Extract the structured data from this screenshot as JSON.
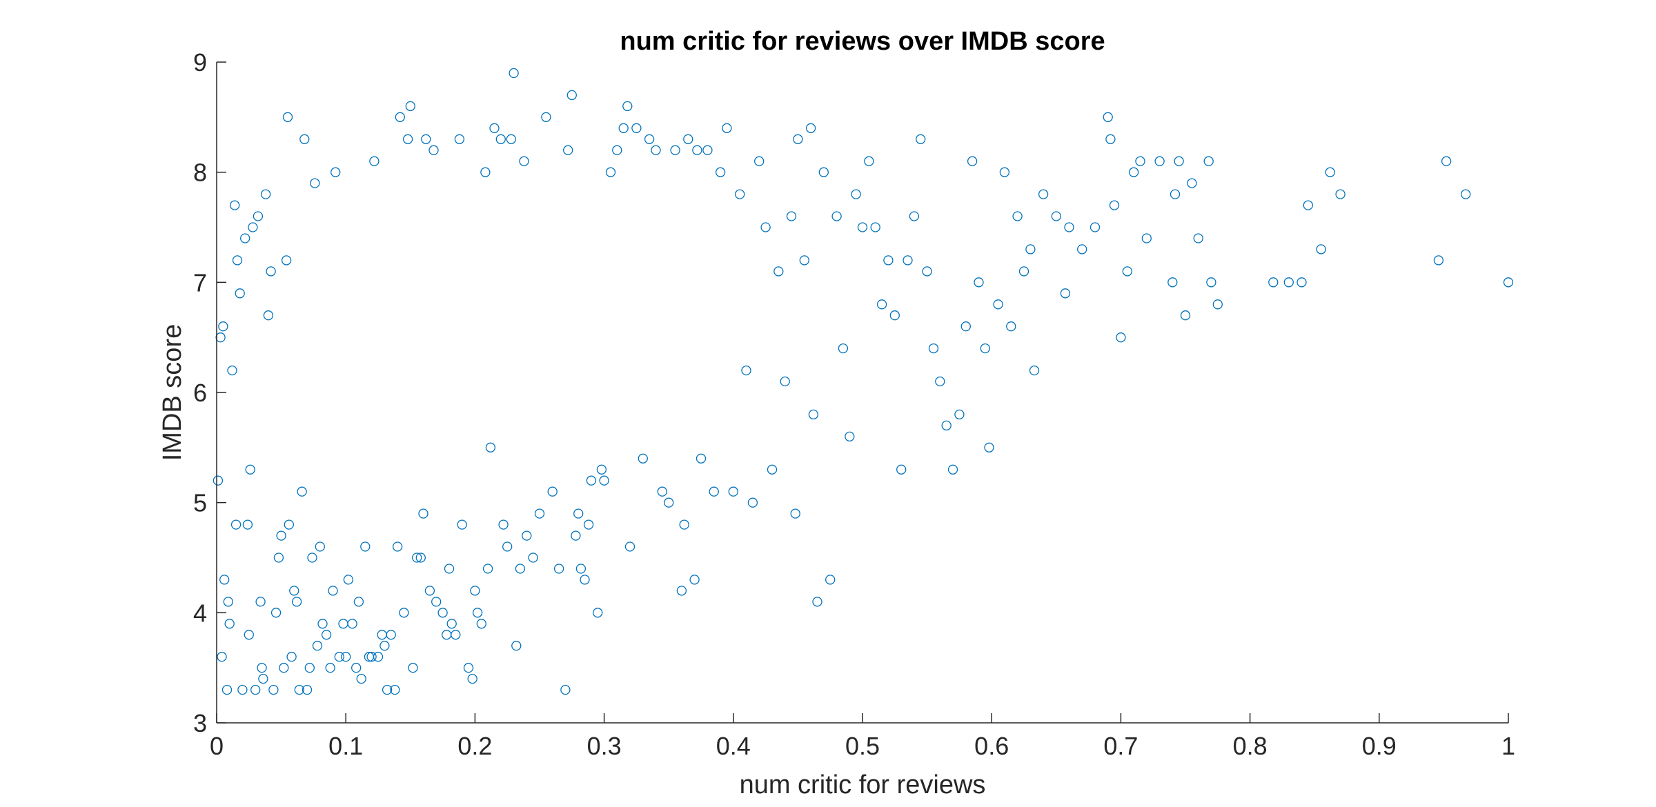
{
  "chart_data": {
    "type": "scatter",
    "title": "num critic for reviews over IMDB score",
    "xlabel": "num critic for reviews",
    "ylabel": "IMDB score",
    "xlim": [
      0,
      1
    ],
    "ylim": [
      3,
      9
    ],
    "xticks": [
      "0",
      "0.1",
      "0.2",
      "0.3",
      "0.4",
      "0.5",
      "0.6",
      "0.7",
      "0.8",
      "0.9",
      "1"
    ],
    "yticks": [
      "3",
      "4",
      "5",
      "6",
      "7",
      "8",
      "9"
    ],
    "grid": false,
    "marker": "open-circle",
    "color": "#0072BD",
    "series": [
      {
        "points": [
          [
            0.001,
            5.2
          ],
          [
            0.003,
            6.5
          ],
          [
            0.004,
            3.6
          ],
          [
            0.005,
            6.6
          ],
          [
            0.006,
            4.3
          ],
          [
            0.008,
            3.3
          ],
          [
            0.009,
            4.1
          ],
          [
            0.01,
            3.9
          ],
          [
            0.012,
            6.2
          ],
          [
            0.014,
            7.7
          ],
          [
            0.015,
            4.8
          ],
          [
            0.016,
            7.2
          ],
          [
            0.018,
            6.9
          ],
          [
            0.02,
            3.3
          ],
          [
            0.022,
            7.4
          ],
          [
            0.024,
            4.8
          ],
          [
            0.025,
            3.8
          ],
          [
            0.026,
            5.3
          ],
          [
            0.028,
            7.5
          ],
          [
            0.03,
            3.3
          ],
          [
            0.032,
            7.6
          ],
          [
            0.034,
            4.1
          ],
          [
            0.035,
            3.5
          ],
          [
            0.036,
            3.4
          ],
          [
            0.038,
            7.8
          ],
          [
            0.04,
            6.7
          ],
          [
            0.042,
            7.1
          ],
          [
            0.044,
            3.3
          ],
          [
            0.046,
            4.0
          ],
          [
            0.048,
            4.5
          ],
          [
            0.05,
            4.7
          ],
          [
            0.052,
            3.5
          ],
          [
            0.054,
            7.2
          ],
          [
            0.055,
            8.5
          ],
          [
            0.056,
            4.8
          ],
          [
            0.058,
            3.6
          ],
          [
            0.06,
            4.2
          ],
          [
            0.062,
            4.1
          ],
          [
            0.064,
            3.3
          ],
          [
            0.066,
            5.1
          ],
          [
            0.068,
            8.3
          ],
          [
            0.07,
            3.3
          ],
          [
            0.072,
            3.5
          ],
          [
            0.074,
            4.5
          ],
          [
            0.076,
            7.9
          ],
          [
            0.078,
            3.7
          ],
          [
            0.08,
            4.6
          ],
          [
            0.082,
            3.9
          ],
          [
            0.085,
            3.8
          ],
          [
            0.088,
            3.5
          ],
          [
            0.09,
            4.2
          ],
          [
            0.092,
            8.0
          ],
          [
            0.095,
            3.6
          ],
          [
            0.098,
            3.9
          ],
          [
            0.1,
            3.6
          ],
          [
            0.102,
            4.3
          ],
          [
            0.105,
            3.9
          ],
          [
            0.108,
            3.5
          ],
          [
            0.11,
            4.1
          ],
          [
            0.112,
            3.4
          ],
          [
            0.115,
            4.6
          ],
          [
            0.118,
            3.6
          ],
          [
            0.12,
            3.6
          ],
          [
            0.122,
            8.1
          ],
          [
            0.125,
            3.6
          ],
          [
            0.128,
            3.8
          ],
          [
            0.13,
            3.7
          ],
          [
            0.132,
            3.3
          ],
          [
            0.135,
            3.8
          ],
          [
            0.138,
            3.3
          ],
          [
            0.14,
            4.6
          ],
          [
            0.142,
            8.5
          ],
          [
            0.145,
            4.0
          ],
          [
            0.148,
            8.3
          ],
          [
            0.15,
            8.6
          ],
          [
            0.152,
            3.5
          ],
          [
            0.155,
            4.5
          ],
          [
            0.158,
            4.5
          ],
          [
            0.16,
            4.9
          ],
          [
            0.162,
            8.3
          ],
          [
            0.165,
            4.2
          ],
          [
            0.168,
            8.2
          ],
          [
            0.17,
            4.1
          ],
          [
            0.175,
            4.0
          ],
          [
            0.178,
            3.8
          ],
          [
            0.18,
            4.4
          ],
          [
            0.182,
            3.9
          ],
          [
            0.185,
            3.8
          ],
          [
            0.188,
            8.3
          ],
          [
            0.19,
            4.8
          ],
          [
            0.195,
            3.5
          ],
          [
            0.198,
            3.4
          ],
          [
            0.2,
            4.2
          ],
          [
            0.202,
            4.0
          ],
          [
            0.205,
            3.9
          ],
          [
            0.208,
            8.0
          ],
          [
            0.21,
            4.4
          ],
          [
            0.212,
            5.5
          ],
          [
            0.215,
            8.4
          ],
          [
            0.22,
            8.3
          ],
          [
            0.222,
            4.8
          ],
          [
            0.225,
            4.6
          ],
          [
            0.228,
            8.3
          ],
          [
            0.23,
            8.9
          ],
          [
            0.232,
            3.7
          ],
          [
            0.235,
            4.4
          ],
          [
            0.238,
            8.1
          ],
          [
            0.24,
            4.7
          ],
          [
            0.245,
            4.5
          ],
          [
            0.25,
            4.9
          ],
          [
            0.255,
            8.5
          ],
          [
            0.26,
            5.1
          ],
          [
            0.265,
            4.4
          ],
          [
            0.27,
            3.3
          ],
          [
            0.272,
            8.2
          ],
          [
            0.275,
            8.7
          ],
          [
            0.278,
            4.7
          ],
          [
            0.28,
            4.9
          ],
          [
            0.282,
            4.4
          ],
          [
            0.285,
            4.3
          ],
          [
            0.288,
            4.8
          ],
          [
            0.29,
            5.2
          ],
          [
            0.295,
            4.0
          ],
          [
            0.298,
            5.3
          ],
          [
            0.3,
            5.2
          ],
          [
            0.305,
            8.0
          ],
          [
            0.31,
            8.2
          ],
          [
            0.315,
            8.4
          ],
          [
            0.318,
            8.6
          ],
          [
            0.32,
            4.6
          ],
          [
            0.325,
            8.4
          ],
          [
            0.33,
            5.4
          ],
          [
            0.335,
            8.3
          ],
          [
            0.34,
            8.2
          ],
          [
            0.345,
            5.1
          ],
          [
            0.35,
            5.0
          ],
          [
            0.355,
            8.2
          ],
          [
            0.36,
            4.2
          ],
          [
            0.362,
            4.8
          ],
          [
            0.365,
            8.3
          ],
          [
            0.37,
            4.3
          ],
          [
            0.372,
            8.2
          ],
          [
            0.375,
            5.4
          ],
          [
            0.38,
            8.2
          ],
          [
            0.385,
            5.1
          ],
          [
            0.39,
            8.0
          ],
          [
            0.395,
            8.4
          ],
          [
            0.4,
            5.1
          ],
          [
            0.405,
            7.8
          ],
          [
            0.41,
            6.2
          ],
          [
            0.415,
            5.0
          ],
          [
            0.42,
            8.1
          ],
          [
            0.425,
            7.5
          ],
          [
            0.43,
            5.3
          ],
          [
            0.435,
            7.1
          ],
          [
            0.44,
            6.1
          ],
          [
            0.445,
            7.6
          ],
          [
            0.448,
            4.9
          ],
          [
            0.45,
            8.3
          ],
          [
            0.455,
            7.2
          ],
          [
            0.46,
            8.4
          ],
          [
            0.462,
            5.8
          ],
          [
            0.465,
            4.1
          ],
          [
            0.47,
            8.0
          ],
          [
            0.475,
            4.3
          ],
          [
            0.48,
            7.6
          ],
          [
            0.485,
            6.4
          ],
          [
            0.49,
            5.6
          ],
          [
            0.495,
            7.8
          ],
          [
            0.5,
            7.5
          ],
          [
            0.505,
            8.1
          ],
          [
            0.51,
            7.5
          ],
          [
            0.515,
            6.8
          ],
          [
            0.52,
            7.2
          ],
          [
            0.525,
            6.7
          ],
          [
            0.53,
            5.3
          ],
          [
            0.535,
            7.2
          ],
          [
            0.54,
            7.6
          ],
          [
            0.545,
            8.3
          ],
          [
            0.55,
            7.1
          ],
          [
            0.555,
            6.4
          ],
          [
            0.56,
            6.1
          ],
          [
            0.565,
            5.7
          ],
          [
            0.57,
            5.3
          ],
          [
            0.575,
            5.8
          ],
          [
            0.58,
            6.6
          ],
          [
            0.585,
            8.1
          ],
          [
            0.59,
            7.0
          ],
          [
            0.595,
            6.4
          ],
          [
            0.598,
            5.5
          ],
          [
            0.605,
            6.8
          ],
          [
            0.61,
            8.0
          ],
          [
            0.615,
            6.6
          ],
          [
            0.62,
            7.6
          ],
          [
            0.625,
            7.1
          ],
          [
            0.63,
            7.3
          ],
          [
            0.633,
            6.2
          ],
          [
            0.64,
            7.8
          ],
          [
            0.65,
            7.6
          ],
          [
            0.657,
            6.9
          ],
          [
            0.66,
            7.5
          ],
          [
            0.67,
            7.3
          ],
          [
            0.68,
            7.5
          ],
          [
            0.69,
            8.5
          ],
          [
            0.692,
            8.3
          ],
          [
            0.695,
            7.7
          ],
          [
            0.7,
            6.5
          ],
          [
            0.705,
            7.1
          ],
          [
            0.71,
            8.0
          ],
          [
            0.715,
            8.1
          ],
          [
            0.72,
            7.4
          ],
          [
            0.73,
            8.1
          ],
          [
            0.74,
            7.0
          ],
          [
            0.742,
            7.8
          ],
          [
            0.745,
            8.1
          ],
          [
            0.75,
            6.7
          ],
          [
            0.755,
            7.9
          ],
          [
            0.76,
            7.4
          ],
          [
            0.768,
            8.1
          ],
          [
            0.77,
            7.0
          ],
          [
            0.775,
            6.8
          ],
          [
            0.818,
            7.0
          ],
          [
            0.83,
            7.0
          ],
          [
            0.84,
            7.0
          ],
          [
            0.845,
            7.7
          ],
          [
            0.855,
            7.3
          ],
          [
            0.862,
            8.0
          ],
          [
            0.87,
            7.8
          ],
          [
            0.946,
            7.2
          ],
          [
            0.952,
            8.1
          ],
          [
            0.967,
            7.8
          ],
          [
            1.0,
            7.0
          ]
        ]
      }
    ]
  }
}
